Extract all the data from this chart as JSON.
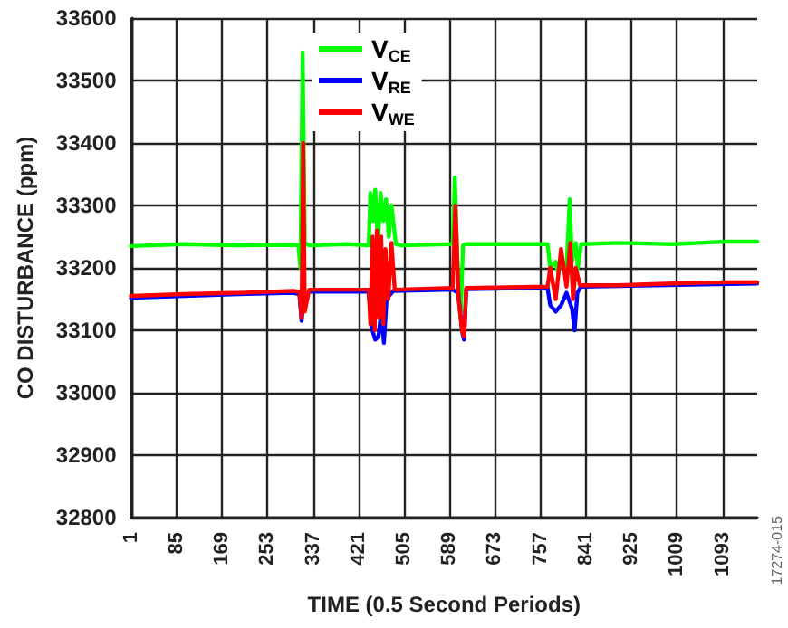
{
  "chart_data": {
    "type": "line",
    "xlabel": "TIME (0.5 Second Periods)",
    "ylabel": "CO DISTURBANCE (ppm)",
    "annotations": [
      "17274-015"
    ],
    "xlim": [
      1,
      1157
    ],
    "xticks": [
      1,
      85,
      169,
      253,
      337,
      421,
      505,
      589,
      673,
      757,
      841,
      925,
      1009,
      1093
    ],
    "ylim": [
      32800,
      33600
    ],
    "yticks": [
      32800,
      32900,
      33000,
      33100,
      33200,
      33300,
      33400,
      33500,
      33600
    ],
    "grid": true,
    "legend": "top",
    "marker": "none",
    "line_style": "solid",
    "series": [
      {
        "name": "V$_{CE}$",
        "color": "#00ff00",
        "x": [
          1,
          100,
          200,
          300,
          310,
          314,
          318,
          322,
          330,
          400,
          440,
          443,
          448,
          452,
          457,
          462,
          467,
          472,
          477,
          482,
          490,
          500,
          590,
          595,
          599,
          604,
          610,
          614,
          620,
          770,
          775,
          785,
          790,
          795,
          805,
          811,
          815,
          822,
          826,
          832,
          900,
          1000,
          1100,
          1157
        ],
        "values": [
          33235,
          33238,
          33236,
          33237,
          33236,
          33200,
          33545,
          33240,
          33236,
          33238,
          33236,
          33320,
          33275,
          33325,
          33240,
          33320,
          33275,
          33310,
          33250,
          33300,
          33238,
          33236,
          33238,
          33240,
          33345,
          33200,
          33130,
          33236,
          33238,
          33238,
          33200,
          33210,
          33190,
          33215,
          33200,
          33310,
          33210,
          33240,
          33200,
          33238,
          33240,
          33238,
          33242,
          33242
        ]
      },
      {
        "name": "V$_{RE}$",
        "color": "#0000ff",
        "x": [
          1,
          100,
          200,
          300,
          312,
          316,
          320,
          330,
          440,
          445,
          452,
          458,
          463,
          468,
          473,
          485,
          595,
          605,
          613,
          616,
          620,
          770,
          775,
          785,
          795,
          805,
          815,
          820,
          825,
          832,
          1157
        ],
        "values": [
          33152,
          33155,
          33158,
          33160,
          33158,
          33115,
          33150,
          33162,
          33162,
          33105,
          33085,
          33090,
          33130,
          33080,
          33150,
          33163,
          33165,
          33160,
          33095,
          33085,
          33166,
          33168,
          33140,
          33130,
          33140,
          33160,
          33135,
          33100,
          33160,
          33170,
          33175
        ]
      },
      {
        "name": "V$_{WE}$",
        "color": "#ff0000",
        "x": [
          1,
          100,
          200,
          300,
          312,
          316,
          319,
          322,
          330,
          440,
          443,
          447,
          451,
          455,
          459,
          463,
          467,
          471,
          476,
          482,
          488,
          595,
          600,
          606,
          612,
          616,
          620,
          770,
          775,
          785,
          795,
          805,
          812,
          817,
          822,
          830,
          900,
          1000,
          1100,
          1157
        ],
        "values": [
          33155,
          33158,
          33160,
          33163,
          33162,
          33120,
          33400,
          33130,
          33165,
          33165,
          33110,
          33250,
          33100,
          33260,
          33120,
          33250,
          33110,
          33230,
          33150,
          33240,
          33165,
          33168,
          33300,
          33150,
          33100,
          33090,
          33168,
          33170,
          33200,
          33150,
          33230,
          33170,
          33240,
          33150,
          33200,
          33172,
          33172,
          33175,
          33177,
          33177
        ]
      }
    ]
  }
}
